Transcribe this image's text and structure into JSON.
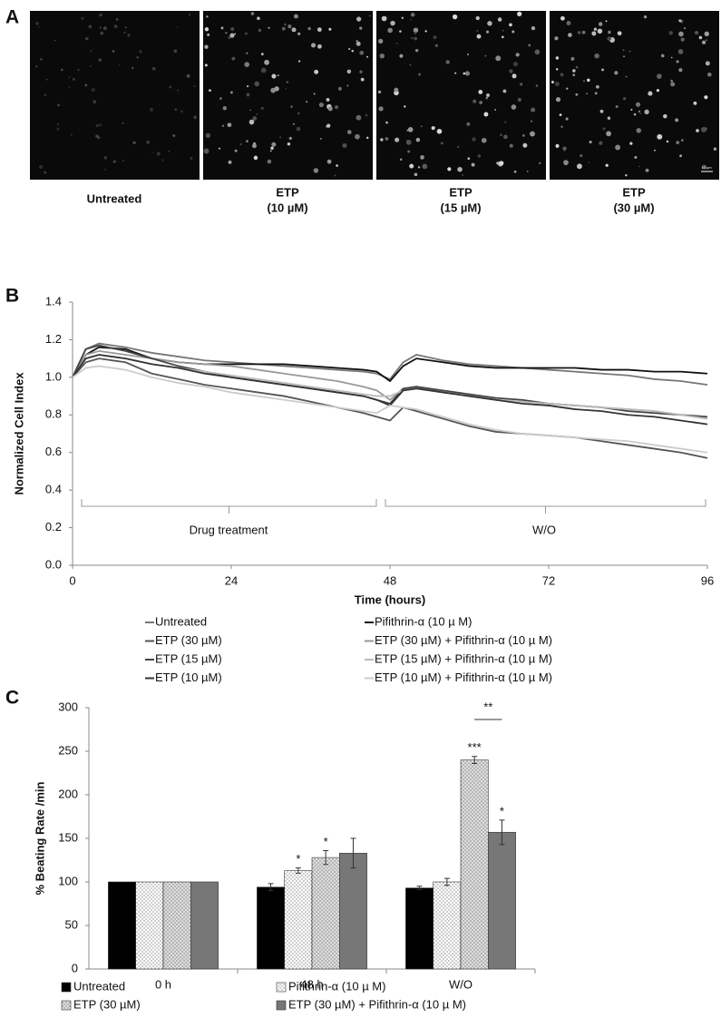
{
  "panel_a": {
    "label": "A",
    "scale_bar": "10 µm",
    "images": [
      {
        "lines": [
          "Untreated"
        ]
      },
      {
        "lines": [
          "ETP",
          "(10 µM)"
        ]
      },
      {
        "lines": [
          "ETP",
          "(15 µM)"
        ]
      },
      {
        "lines": [
          "ETP",
          "(30 µM)"
        ]
      }
    ]
  },
  "chart_data": [
    {
      "type": "line",
      "panel_label": "B",
      "x_label": "Time (hours)",
      "y_label": "Normalized Cell Index",
      "annotations": [
        "Drug treatment",
        "W/O"
      ],
      "x": [
        0,
        2,
        4,
        8,
        12,
        16,
        20,
        24,
        28,
        32,
        36,
        40,
        44,
        46,
        48,
        50,
        52,
        56,
        60,
        64,
        68,
        72,
        76,
        80,
        84,
        88,
        92,
        96
      ],
      "xlim": [
        0,
        96
      ],
      "xticks": [
        0,
        24,
        48,
        72,
        96
      ],
      "ylim": [
        0,
        1.4
      ],
      "yticks": [
        {
          "value": 0,
          "label": "0.0"
        },
        0.2,
        0.4,
        0.6,
        0.8,
        {
          "value": 1,
          "label": "1.0"
        },
        1.2,
        1.4
      ],
      "series": [
        {
          "name": "Untreated",
          "color": "#777777",
          "values": [
            1.0,
            1.15,
            1.18,
            1.16,
            1.13,
            1.11,
            1.09,
            1.08,
            1.07,
            1.06,
            1.05,
            1.04,
            1.03,
            1.02,
            0.99,
            1.08,
            1.12,
            1.09,
            1.07,
            1.06,
            1.05,
            1.04,
            1.03,
            1.02,
            1.01,
            0.99,
            0.98,
            0.96
          ]
        },
        {
          "name": "Pifithrin-α (10 µ M)",
          "color": "#111111",
          "values": [
            1.0,
            1.12,
            1.16,
            1.15,
            1.1,
            1.08,
            1.07,
            1.07,
            1.07,
            1.07,
            1.06,
            1.05,
            1.04,
            1.03,
            0.98,
            1.06,
            1.1,
            1.08,
            1.06,
            1.05,
            1.05,
            1.05,
            1.05,
            1.04,
            1.04,
            1.03,
            1.03,
            1.02
          ]
        },
        {
          "name": "ETP (30 µM)",
          "color": "#555555",
          "values": [
            1.0,
            1.08,
            1.1,
            1.08,
            1.02,
            0.99,
            0.96,
            0.94,
            0.92,
            0.9,
            0.87,
            0.84,
            0.81,
            0.79,
            0.77,
            0.84,
            0.82,
            0.78,
            0.74,
            0.71,
            0.7,
            0.69,
            0.68,
            0.66,
            0.64,
            0.62,
            0.6,
            0.57
          ]
        },
        {
          "name": "ETP (30 µM) + Pifithrin-α (10 µ M)",
          "color": "#999999",
          "values": [
            1.0,
            1.12,
            1.14,
            1.12,
            1.1,
            1.08,
            1.07,
            1.06,
            1.04,
            1.02,
            1.0,
            0.98,
            0.95,
            0.93,
            0.88,
            0.94,
            0.95,
            0.92,
            0.9,
            0.88,
            0.87,
            0.86,
            0.85,
            0.84,
            0.83,
            0.82,
            0.8,
            0.78
          ]
        },
        {
          "name": "ETP (15 µM)",
          "color": "#444444",
          "values": [
            1.0,
            1.15,
            1.17,
            1.14,
            1.1,
            1.06,
            1.03,
            1.0,
            0.98,
            0.96,
            0.94,
            0.92,
            0.9,
            0.88,
            0.86,
            0.94,
            0.95,
            0.93,
            0.91,
            0.89,
            0.88,
            0.86,
            0.85,
            0.84,
            0.82,
            0.81,
            0.8,
            0.79
          ]
        },
        {
          "name": "ETP (15 µM) + Pifithrin-α (10 µ M)",
          "color": "#bbbbbb",
          "values": [
            1.0,
            1.1,
            1.12,
            1.1,
            1.07,
            1.05,
            1.03,
            1.01,
            0.99,
            0.97,
            0.95,
            0.93,
            0.91,
            0.9,
            0.9,
            0.93,
            0.94,
            0.92,
            0.9,
            0.88,
            0.87,
            0.86,
            0.85,
            0.84,
            0.83,
            0.82,
            0.8,
            0.78
          ]
        },
        {
          "name": "ETP (10 µM)",
          "color": "#333333",
          "values": [
            1.0,
            1.1,
            1.12,
            1.1,
            1.07,
            1.05,
            1.02,
            1.0,
            0.98,
            0.96,
            0.94,
            0.92,
            0.9,
            0.88,
            0.85,
            0.93,
            0.94,
            0.92,
            0.9,
            0.88,
            0.86,
            0.85,
            0.83,
            0.82,
            0.8,
            0.79,
            0.77,
            0.75
          ]
        },
        {
          "name": "ETP (10 µM) + Pifithrin-α (10 µ M)",
          "color": "#cccccc",
          "values": [
            1.0,
            1.05,
            1.06,
            1.04,
            1.0,
            0.97,
            0.95,
            0.92,
            0.9,
            0.88,
            0.86,
            0.84,
            0.82,
            0.81,
            0.85,
            0.84,
            0.83,
            0.79,
            0.75,
            0.72,
            0.7,
            0.69,
            0.68,
            0.67,
            0.66,
            0.64,
            0.62,
            0.6
          ]
        }
      ]
    },
    {
      "type": "bar",
      "panel_label": "C",
      "y_label": "% Beating Rate /min",
      "categories": [
        "0 h",
        "48 h",
        "W/O"
      ],
      "ylim": [
        0,
        300
      ],
      "yticks": [
        0,
        50,
        100,
        150,
        200,
        250,
        300
      ],
      "annotations": [
        "**"
      ],
      "series": [
        {
          "name": "Untreated",
          "color": "#000000",
          "values": [
            100,
            94,
            93
          ],
          "errors": [
            0,
            4,
            2
          ],
          "significance": [
            null,
            null,
            null
          ]
        },
        {
          "name": "Pifithrin-α (10 µ M)",
          "color": "#ffffff",
          "pattern": "dots",
          "values": [
            100,
            113,
            100
          ],
          "errors": [
            0,
            3,
            4
          ],
          "significance": [
            null,
            "*",
            null
          ]
        },
        {
          "name": "ETP (30 µM)",
          "color": "#dddddd",
          "pattern": "dots",
          "values": [
            100,
            128,
            240
          ],
          "errors": [
            0,
            8,
            4
          ],
          "significance": [
            null,
            "*",
            "***"
          ]
        },
        {
          "name": "ETP (30 µM) + Pifithrin-α (10 µ M)",
          "color": "#777777",
          "values": [
            100,
            133,
            157
          ],
          "errors": [
            0,
            17,
            14
          ],
          "significance": [
            null,
            null,
            "*"
          ]
        }
      ]
    }
  ]
}
